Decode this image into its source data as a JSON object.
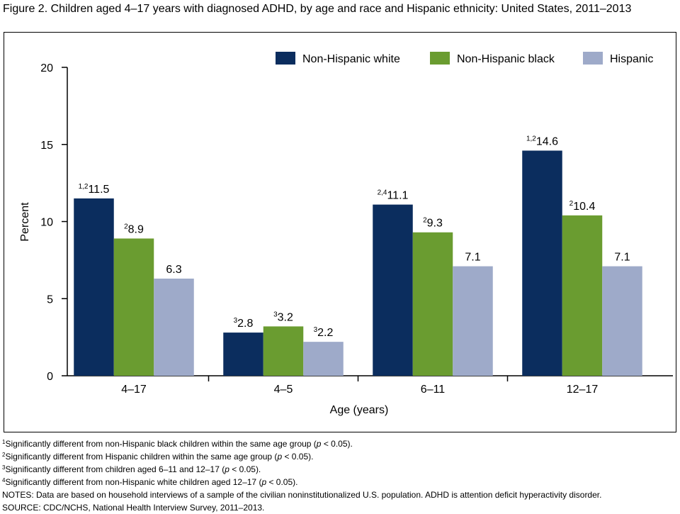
{
  "chart_data": {
    "type": "bar",
    "title": "Figure 2. Children aged 4–17 years with diagnosed ADHD, by age and race and Hispanic ethnicity: United States, 2011–2013",
    "categories": [
      "4–17",
      "4–5",
      "6–11",
      "12–17"
    ],
    "x_label": "Age (years)",
    "y_label": "Percent",
    "series": [
      {
        "name": "Non-Hispanic white",
        "color": "#0b2d5e",
        "values": [
          11.5,
          2.8,
          11.1,
          14.6
        ],
        "notes": [
          "1,2",
          "3",
          "2,4",
          "1,2"
        ]
      },
      {
        "name": "Non-Hispanic black",
        "color": "#6a9c30",
        "values": [
          8.9,
          3.2,
          9.3,
          10.4
        ],
        "notes": [
          "2",
          "3",
          "2",
          "2"
        ]
      },
      {
        "name": "Hispanic",
        "color": "#9eaac9",
        "values": [
          6.3,
          2.2,
          7.1,
          7.1
        ],
        "notes": [
          null,
          "3",
          null,
          null
        ]
      }
    ],
    "ylim": [
      0,
      20
    ],
    "yticks": [
      0,
      5,
      10,
      15,
      20
    ],
    "grid": false,
    "legend": "upper right"
  },
  "footnotes": [
    {
      "marker": "1",
      "parts": [
        "Significantly different from non-Hispanic black children within the same age group (",
        "p",
        " < 0.05)."
      ]
    },
    {
      "marker": "2",
      "parts": [
        "Significantly different from Hispanic children within the same age group (",
        "p",
        " < 0.05)."
      ]
    },
    {
      "marker": "3",
      "parts": [
        "Significantly different from children aged 6–11 and 12–17 (",
        "p",
        " < 0.05)."
      ]
    },
    {
      "marker": "4",
      "parts": [
        "Significantly different from non-Hispanic white children aged 12–17 (",
        "p",
        " < 0.05)."
      ]
    }
  ],
  "notes": "NOTES: Data are based on household interviews of a sample of the civilian noninstitutionalized U.S. population. ADHD is attention deficit hyperactivity disorder.",
  "source": "SOURCE: CDC/NCHS, National Health Interview Survey, 2011–2013."
}
